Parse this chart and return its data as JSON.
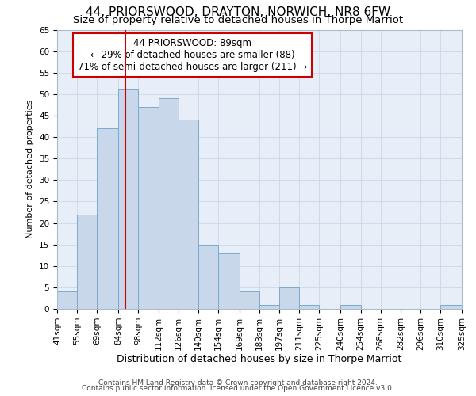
{
  "title": "44, PRIORSWOOD, DRAYTON, NORWICH, NR8 6FW",
  "subtitle": "Size of property relative to detached houses in Thorpe Marriot",
  "xlabel": "Distribution of detached houses by size in Thorpe Marriot",
  "ylabel": "Number of detached properties",
  "footnote1": "Contains HM Land Registry data © Crown copyright and database right 2024.",
  "footnote2": "Contains public sector information licensed under the Open Government Licence v3.0.",
  "bin_edges": [
    41,
    55,
    69,
    84,
    98,
    112,
    126,
    140,
    154,
    169,
    183,
    197,
    211,
    225,
    240,
    254,
    268,
    282,
    296,
    310,
    325
  ],
  "bin_labels": [
    "41sqm",
    "55sqm",
    "69sqm",
    "84sqm",
    "98sqm",
    "112sqm",
    "126sqm",
    "140sqm",
    "154sqm",
    "169sqm",
    "183sqm",
    "197sqm",
    "211sqm",
    "225sqm",
    "240sqm",
    "254sqm",
    "268sqm",
    "282sqm",
    "296sqm",
    "310sqm",
    "325sqm"
  ],
  "counts": [
    4,
    22,
    42,
    51,
    47,
    49,
    44,
    15,
    13,
    4,
    1,
    5,
    1,
    0,
    1,
    0,
    0,
    0,
    0,
    1
  ],
  "bar_color": "#c8d8ea",
  "bar_edge_color": "#7aaad0",
  "vline_x": 89,
  "vline_color": "#cc0000",
  "annotation_title": "44 PRIORSWOOD: 89sqm",
  "annotation_line1": "← 29% of detached houses are smaller (88)",
  "annotation_line2": "71% of semi-detached houses are larger (211) →",
  "annotation_box_color": "#cc0000",
  "ylim": [
    0,
    65
  ],
  "yticks": [
    0,
    5,
    10,
    15,
    20,
    25,
    30,
    35,
    40,
    45,
    50,
    55,
    60,
    65
  ],
  "grid_color": "#ccd8e8",
  "background_color": "#e8eef8",
  "title_fontsize": 11,
  "subtitle_fontsize": 9.5,
  "annotation_fontsize": 8.5,
  "axis_label_fontsize": 9,
  "ylabel_fontsize": 8,
  "tick_fontsize": 7.5,
  "footnote_fontsize": 6.5
}
